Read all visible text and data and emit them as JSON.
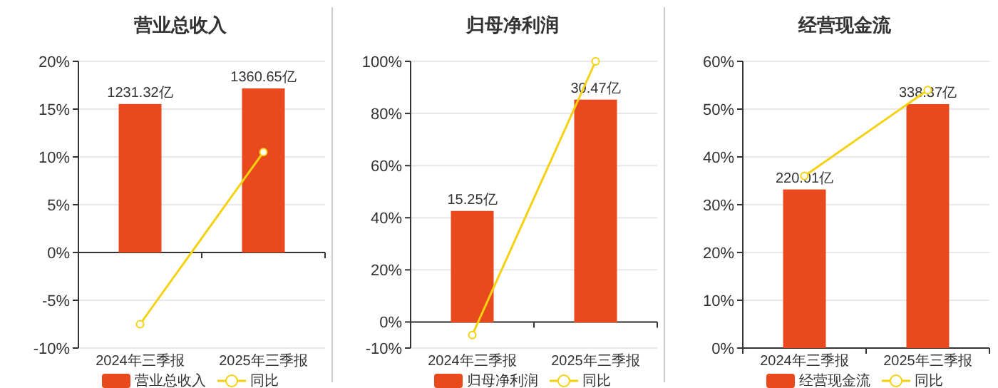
{
  "chart_data": [
    {
      "type": "bar",
      "title": "营业总收入",
      "categories": [
        "2024年三季报",
        "2025年三季报"
      ],
      "series": [
        {
          "name": "营业总收入",
          "axis": "y2",
          "color": "#e84a1e",
          "values": [
            1231.32,
            1360.65
          ],
          "value_labels": [
            "1231.32亿",
            "1360.65亿"
          ]
        },
        {
          "name": "同比",
          "type": "line",
          "color": "#f5d10f",
          "values": [
            -7.5,
            10.5
          ],
          "marker": "circle"
        }
      ],
      "ylim": [
        -10,
        20
      ],
      "yticks": [
        {
          "value": -10,
          "label": "-10%"
        },
        {
          "value": -5,
          "label": "-5%"
        },
        {
          "value": 0,
          "label": "0%"
        },
        {
          "value": 5,
          "label": "5%"
        },
        {
          "value": 10,
          "label": "10%"
        },
        {
          "value": 15,
          "label": "15%"
        },
        {
          "value": 20,
          "label": "20%"
        }
      ],
      "y2lim": [
        -792,
        1585
      ],
      "grid": "y",
      "legend": "bottom"
    },
    {
      "type": "bar",
      "title": "归母净利润",
      "categories": [
        "2024年三季报",
        "2025年三季报"
      ],
      "series": [
        {
          "name": "归母净利润",
          "axis": "y2",
          "color": "#e84a1e",
          "values": [
            15.25,
            30.47
          ],
          "value_labels": [
            "15.25亿",
            "30.47亿"
          ]
        },
        {
          "name": "同比",
          "type": "line",
          "color": "#f5d10f",
          "values": [
            -5,
            100
          ],
          "marker": "circle"
        }
      ],
      "ylim": [
        -10,
        100
      ],
      "yticks": [
        {
          "value": -10,
          "label": "-10%"
        },
        {
          "value": 0,
          "label": "0%"
        },
        {
          "value": 20,
          "label": "20%"
        },
        {
          "value": 40,
          "label": "40%"
        },
        {
          "value": 60,
          "label": "60%"
        },
        {
          "value": 80,
          "label": "80%"
        },
        {
          "value": 100,
          "label": "100%"
        }
      ],
      "y2lim": [
        -3.5,
        35.7
      ],
      "grid": "y",
      "legend": "bottom"
    },
    {
      "type": "bar",
      "title": "经营现金流",
      "categories": [
        "2024年三季报",
        "2025年三季报"
      ],
      "series": [
        {
          "name": "经营现金流",
          "axis": "y2",
          "color": "#e84a1e",
          "values": [
            220.01,
            338.37
          ],
          "value_labels": [
            "220.01亿",
            "338.37亿"
          ]
        },
        {
          "name": "同比",
          "type": "line",
          "color": "#f5d10f",
          "values": [
            36,
            54
          ],
          "marker": "circle"
        }
      ],
      "ylim": [
        0,
        60
      ],
      "yticks": [
        {
          "value": 0,
          "label": "0%"
        },
        {
          "value": 10,
          "label": "10%"
        },
        {
          "value": 20,
          "label": "20%"
        },
        {
          "value": 30,
          "label": "30%"
        },
        {
          "value": 40,
          "label": "40%"
        },
        {
          "value": 50,
          "label": "50%"
        },
        {
          "value": 60,
          "label": "60%"
        }
      ],
      "y2lim": [
        0,
        397.7
      ],
      "grid": "y",
      "legend": "bottom"
    }
  ]
}
